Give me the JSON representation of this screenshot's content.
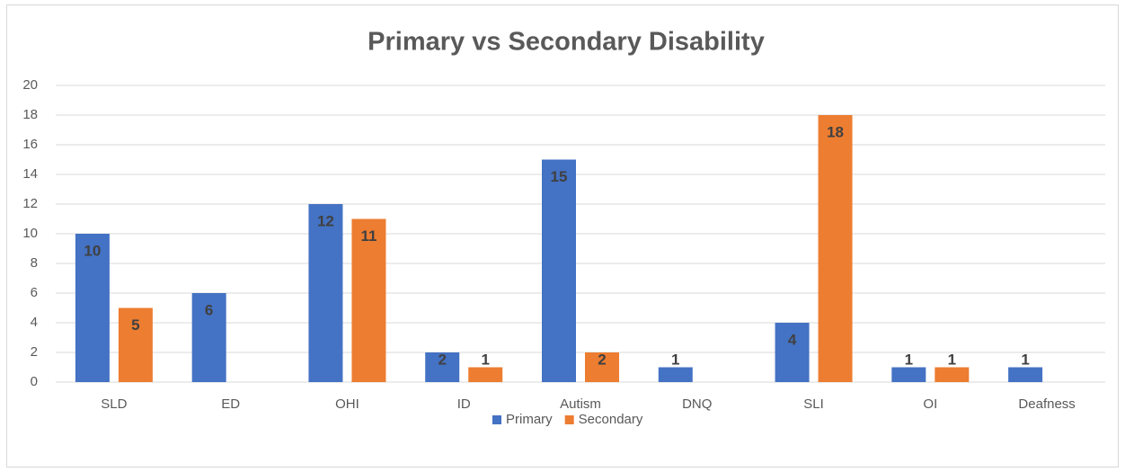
{
  "chart_data": {
    "type": "bar",
    "title": "Primary vs Secondary Disability",
    "categories": [
      "SLD",
      "ED",
      "OHI",
      "ID",
      "Autism",
      "DNQ",
      "SLI",
      "OI",
      "Deafness"
    ],
    "series": [
      {
        "name": "Primary",
        "color": "#4472c4",
        "values": [
          10,
          6,
          12,
          2,
          15,
          1,
          4,
          1,
          1
        ]
      },
      {
        "name": "Secondary",
        "color": "#ed7d31",
        "values": [
          5,
          null,
          11,
          1,
          2,
          null,
          18,
          1,
          null
        ]
      }
    ],
    "ylim": [
      0,
      20
    ],
    "yticks": [
      0,
      2,
      4,
      6,
      8,
      10,
      12,
      14,
      16,
      18,
      20
    ],
    "grid": true,
    "legend": "bottom"
  }
}
